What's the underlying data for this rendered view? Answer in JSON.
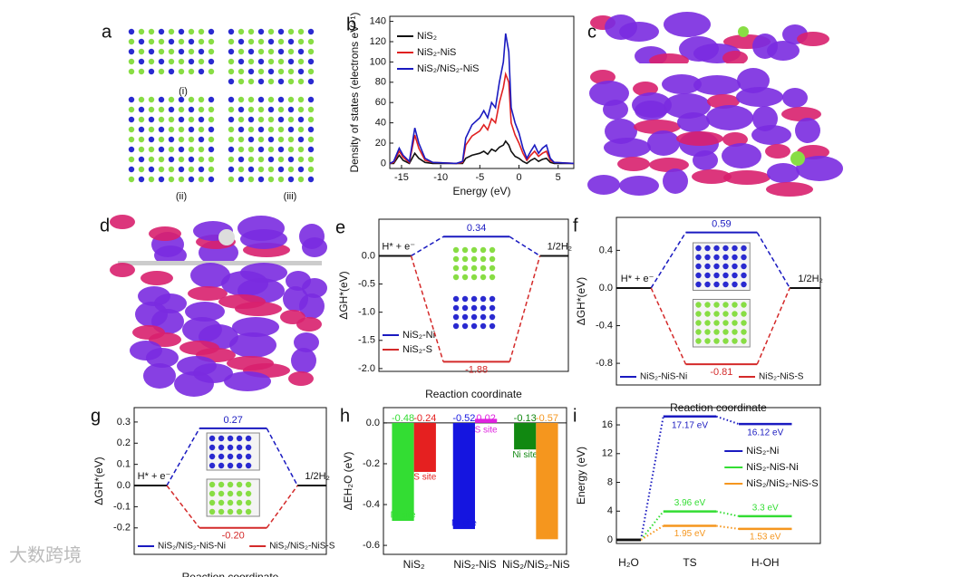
{
  "figures": [
    {
      "panel": "a",
      "labels": [
        "(i)",
        "(ii)",
        "(iii)"
      ]
    },
    {
      "panel": "c"
    },
    {
      "panel": "d"
    }
  ],
  "watermark": "大数跨境",
  "chart_data": [
    {
      "type": "line",
      "panel": "b",
      "xlabel": "Energy (eV)",
      "ylabel": "Density of states (electrons eV⁻¹)",
      "x": [
        -16.5,
        -16,
        -15.3,
        -14.8,
        -14,
        -13.3,
        -12.8,
        -12,
        -11,
        -8,
        -7.2,
        -6.8,
        -6,
        -5,
        -4.5,
        -4,
        -3.5,
        -3,
        -2.5,
        -2,
        -1.7,
        -1.3,
        -1,
        -0.5,
        0,
        0.5,
        1,
        1.5,
        2,
        2.5,
        3,
        3.5,
        4,
        4.5,
        7
      ],
      "series": [
        {
          "name": "NiS₂",
          "color": "#111111",
          "values": [
            0,
            0,
            8,
            3,
            0,
            10,
            5,
            1,
            0,
            0,
            0,
            5,
            8,
            10,
            12,
            9,
            14,
            12,
            16,
            18,
            22,
            18,
            12,
            7,
            5,
            2,
            0,
            3,
            5,
            2,
            4,
            5,
            1,
            0,
            0
          ]
        },
        {
          "name": "NiS₂-NiS",
          "color": "#e02020",
          "values": [
            0,
            1,
            12,
            6,
            1,
            28,
            15,
            3,
            1,
            0,
            1,
            18,
            27,
            32,
            38,
            33,
            44,
            40,
            60,
            75,
            88,
            80,
            40,
            28,
            20,
            10,
            3,
            8,
            12,
            7,
            10,
            12,
            3,
            1,
            0
          ]
        },
        {
          "name": "NiS₂/NiS₂-NiS",
          "color": "#1a1ac0",
          "values": [
            0,
            2,
            15,
            8,
            2,
            35,
            20,
            5,
            1,
            0,
            2,
            25,
            38,
            45,
            52,
            45,
            60,
            55,
            80,
            100,
            128,
            110,
            55,
            40,
            30,
            15,
            5,
            12,
            18,
            10,
            15,
            18,
            5,
            1,
            0
          ]
        }
      ],
      "xlim": [
        -16.5,
        7
      ],
      "xticks": [
        -15,
        -10,
        -5,
        0,
        5
      ],
      "ylim": [
        -5,
        145
      ],
      "yticks": [
        0,
        20,
        40,
        60,
        80,
        100,
        120,
        140
      ],
      "legend": "upper left"
    },
    {
      "type": "energy",
      "panel": "e",
      "xlabel": "Reaction coordinate",
      "ylabel": "ΔGH*(eV)",
      "categories": [
        "H* + e⁻",
        null,
        "1/2H₂"
      ],
      "series": [
        {
          "name": "NiS₂-Ni",
          "color": "#1a1ac0",
          "values": [
            0,
            0.34,
            0
          ]
        },
        {
          "name": "NiS₂-S",
          "color": "#d42a2a",
          "values": [
            0,
            -1.88,
            0
          ]
        }
      ],
      "ylim": [
        -2.05,
        0.65
      ],
      "yticks": [
        {
          "value": 0,
          "label": "0.0"
        },
        -0.5,
        {
          "value": -1,
          "label": "-1.0"
        },
        -1.5,
        {
          "value": -2,
          "label": "-2.0"
        }
      ],
      "legend": "lower left"
    },
    {
      "type": "energy",
      "panel": "f",
      "xlabel": "Reaction coordinate",
      "ylabel": "ΔGH*(eV)",
      "categories": [
        "H* + e⁻",
        null,
        "1/2H₂"
      ],
      "series": [
        {
          "name": "NiS₂-NiS-Ni",
          "color": "#1a1ac0",
          "values": [
            0,
            0.59,
            0
          ]
        },
        {
          "name": "NiS₂-NiS-S",
          "color": "#d42a2a",
          "values": [
            0,
            -0.81,
            0
          ]
        }
      ],
      "ylim": [
        -1.03,
        0.75
      ],
      "yticks": [
        0.4,
        {
          "value": 0,
          "label": "0.0"
        },
        -0.4,
        -0.8
      ],
      "legend": "lower center"
    },
    {
      "type": "energy",
      "panel": "g",
      "xlabel": "Reaction coordinate",
      "ylabel": "ΔGH*(eV)",
      "categories": [
        "H* + e⁻",
        null,
        "1/2H₂"
      ],
      "series": [
        {
          "name": "NiS₂/NiS₂-NiS-Ni",
          "color": "#1a1ac0",
          "values": [
            0,
            0.27,
            0
          ],
          "value_labels": [
            null,
            "0.27",
            null
          ]
        },
        {
          "name": "NiS₂/NiS₂-NiS-S",
          "color": "#d42a2a",
          "values": [
            0,
            -0.2,
            0
          ],
          "value_labels": [
            null,
            "-0.20",
            null
          ]
        }
      ],
      "ylim": [
        -0.325,
        0.368
      ],
      "yticks": [
        0.3,
        0.2,
        0.1,
        {
          "value": 0,
          "label": "0.0"
        },
        -0.1,
        -0.2
      ],
      "legend": "lower center"
    },
    {
      "type": "bar",
      "panel": "h",
      "ylabel": "ΔEH₂O (eV)",
      "categories": [
        "NiS₂",
        "NiS₂-NiS",
        "NiS₂/NiS₂-NiS"
      ],
      "series": [
        {
          "name": "Ni site",
          "colors": [
            "#33dd33",
            "#1515e0",
            "#118811"
          ],
          "values": [
            -0.48,
            -0.52,
            -0.13
          ]
        },
        {
          "name": "S site",
          "colors": [
            "#e52020",
            "#e020e0",
            "#f5961e"
          ],
          "values": [
            -0.24,
            0.02,
            -0.57
          ]
        }
      ],
      "ylim": [
        -0.644,
        0.075
      ],
      "yticks": [
        {
          "value": 0,
          "label": "0.0"
        },
        -0.2,
        -0.4,
        -0.6
      ]
    },
    {
      "type": "levels",
      "panel": "i",
      "ylabel": "Energy (eV)",
      "categories": [
        "H₂O",
        "TS",
        "H-OH"
      ],
      "series": [
        {
          "name": "NiS₂-Ni",
          "color": "#1a1ac0",
          "values": [
            0,
            17.17,
            16.12
          ],
          "value_labels": [
            null,
            "17.17 eV",
            "16.12 eV"
          ]
        },
        {
          "name": "NiS₂-NiS-Ni",
          "color": "#33dd33",
          "values": [
            0,
            3.96,
            3.3
          ],
          "value_labels": [
            null,
            "3.96 eV",
            "3.3 eV"
          ]
        },
        {
          "name": "NiS₂/NiS₂-NiS-S",
          "color": "#f5961e",
          "values": [
            0,
            1.95,
            1.53
          ],
          "value_labels": [
            null,
            "1.95 eV",
            "1.53 eV"
          ]
        }
      ],
      "ylim": [
        -0.5,
        18.4
      ],
      "yticks": [
        0,
        4,
        8,
        12,
        16
      ],
      "legend": "center right"
    }
  ]
}
